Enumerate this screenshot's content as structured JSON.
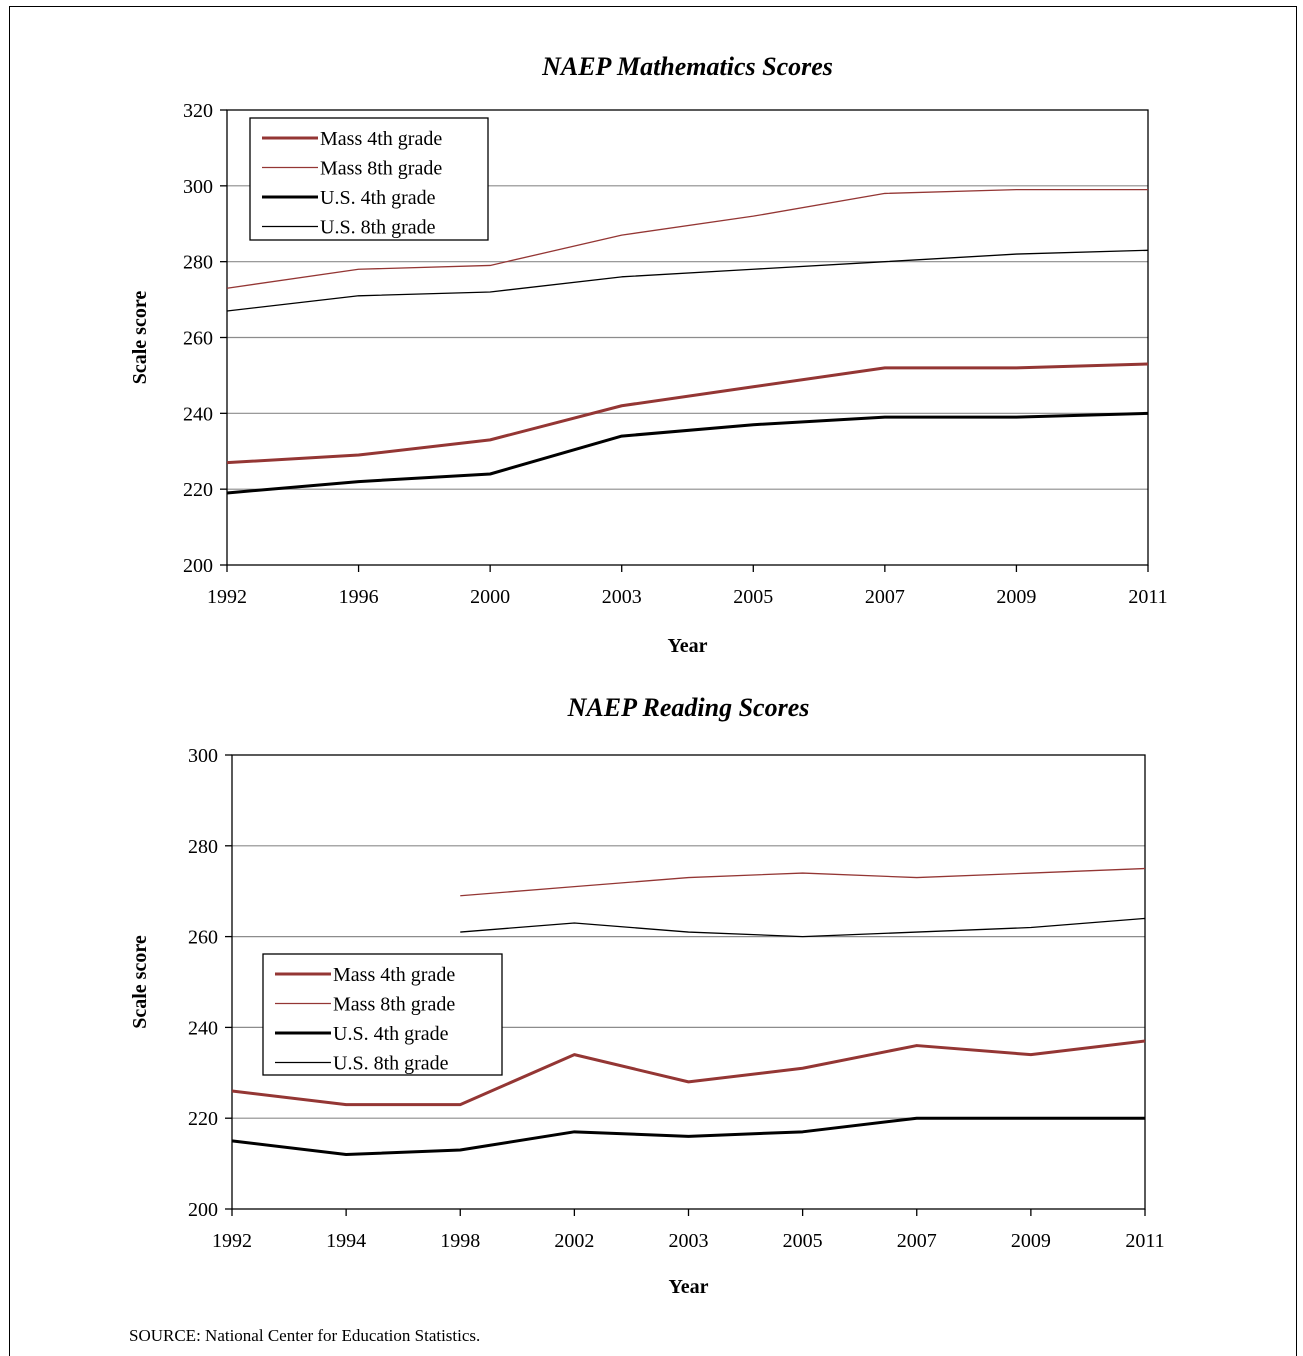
{
  "source": "SOURCE:  National Center for Education Statistics.",
  "series_styles": [
    {
      "color": "#943634",
      "width": 3
    },
    {
      "color": "#943634",
      "width": 1.3
    },
    {
      "color": "#000000",
      "width": 3
    },
    {
      "color": "#000000",
      "width": 1.3
    }
  ],
  "chart_data": [
    {
      "type": "line",
      "title": "NAEP Mathematics Scores",
      "xlabel": "Year",
      "ylabel": "Scale score",
      "categories": [
        "1992",
        "1996",
        "2000",
        "2003",
        "2005",
        "2007",
        "2009",
        "2011"
      ],
      "ylim": [
        200,
        320
      ],
      "yticks": [
        200,
        220,
        240,
        260,
        280,
        300,
        320
      ],
      "grid": true,
      "legend_position": "top-left",
      "series": [
        {
          "name": "Mass 4th grade",
          "values": [
            227,
            229,
            233,
            242,
            247,
            252,
            252,
            253
          ]
        },
        {
          "name": "Mass 8th grade",
          "values": [
            273,
            278,
            279,
            287,
            292,
            298,
            299,
            299
          ]
        },
        {
          "name": "U.S. 4th grade",
          "values": [
            219,
            222,
            224,
            234,
            237,
            239,
            239,
            240
          ]
        },
        {
          "name": "U.S. 8th grade",
          "values": [
            267,
            271,
            272,
            276,
            278,
            280,
            282,
            283
          ]
        }
      ]
    },
    {
      "type": "line",
      "title": "NAEP Reading Scores",
      "xlabel": "Year",
      "ylabel": "Scale score",
      "categories": [
        "1992",
        "1994",
        "1998",
        "2002",
        "2003",
        "2005",
        "2007",
        "2009",
        "2011"
      ],
      "ylim": [
        200,
        300
      ],
      "yticks": [
        200,
        220,
        240,
        260,
        280,
        300
      ],
      "grid": true,
      "legend_position": "middle-left",
      "series": [
        {
          "name": "Mass 4th grade",
          "values": [
            226,
            223,
            223,
            234,
            228,
            231,
            236,
            234,
            237
          ]
        },
        {
          "name": "Mass 8th grade",
          "values": [
            null,
            null,
            269,
            271,
            273,
            274,
            273,
            274,
            275
          ]
        },
        {
          "name": "U.S. 4th grade",
          "values": [
            215,
            212,
            213,
            217,
            216,
            217,
            220,
            220,
            220
          ]
        },
        {
          "name": "U.S. 8th grade",
          "values": [
            null,
            null,
            261,
            263,
            261,
            260,
            261,
            262,
            264
          ]
        }
      ]
    }
  ]
}
